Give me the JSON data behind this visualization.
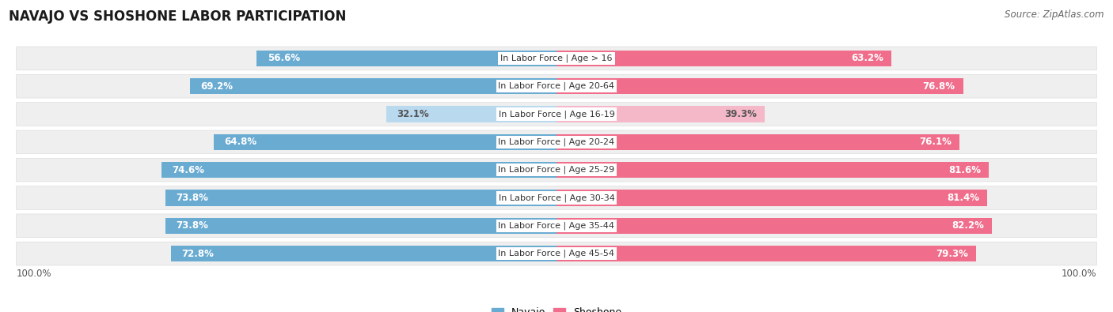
{
  "title": "NAVAJO VS SHOSHONE LABOR PARTICIPATION",
  "source": "Source: ZipAtlas.com",
  "categories": [
    "In Labor Force | Age > 16",
    "In Labor Force | Age 20-64",
    "In Labor Force | Age 16-19",
    "In Labor Force | Age 20-24",
    "In Labor Force | Age 25-29",
    "In Labor Force | Age 30-34",
    "In Labor Force | Age 35-44",
    "In Labor Force | Age 45-54"
  ],
  "navajo": [
    56.6,
    69.2,
    32.1,
    64.8,
    74.6,
    73.8,
    73.8,
    72.8
  ],
  "shoshone": [
    63.2,
    76.8,
    39.3,
    76.1,
    81.6,
    81.4,
    82.2,
    79.3
  ],
  "navajo_color_strong": "#6AABD2",
  "navajo_color_light": "#B8D9EE",
  "shoshone_color_strong": "#F06D8B",
  "shoshone_color_light": "#F5B8C8",
  "text_white": "#FFFFFF",
  "text_dark": "#555555",
  "bar_row_bg": "#EFEFEF",
  "bg_color": "#FFFFFF",
  "title_fontsize": 12,
  "source_fontsize": 8.5,
  "bar_label_fontsize": 8.5,
  "category_fontsize": 8,
  "legend_fontsize": 9,
  "light_rows": [
    2
  ],
  "legend_labels": [
    "Navajo",
    "Shoshone"
  ],
  "bottom_label": "100.0%"
}
